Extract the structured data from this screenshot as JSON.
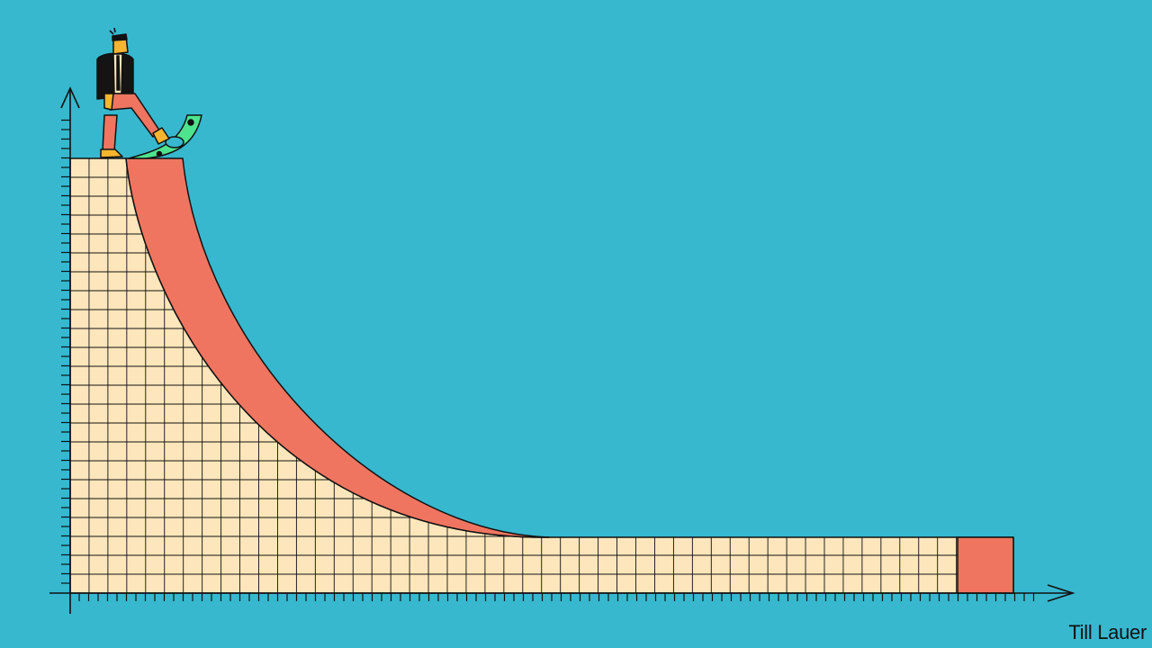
{
  "credit": "Till Lauer",
  "colors": {
    "background": "#37b8cf",
    "grid_fill": "#fde6bb",
    "ink": "#111111",
    "curve_red": "#ef7560",
    "banknote_green": "#4ee48e",
    "skin": "#f5b52e",
    "trousers": "#ef7560",
    "jacket": "#141414"
  }
}
